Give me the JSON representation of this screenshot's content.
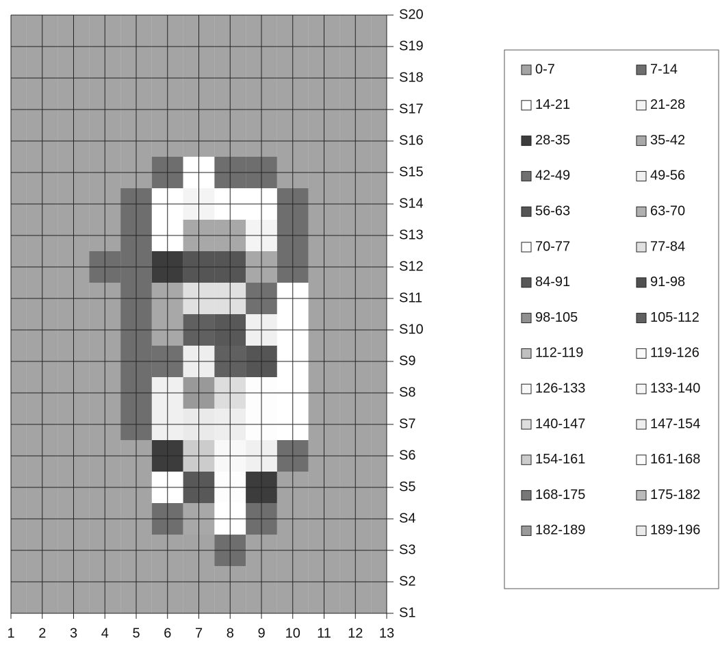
{
  "chart_data": {
    "type": "contour",
    "x": [
      1,
      2,
      3,
      4,
      5,
      6,
      7,
      8,
      9,
      10,
      11,
      12,
      13
    ],
    "xlim": [
      1,
      13
    ],
    "y": [
      "S1",
      "S2",
      "S3",
      "S4",
      "S5",
      "S6",
      "S7",
      "S8",
      "S9",
      "S10",
      "S11",
      "S12",
      "S13",
      "S14",
      "S15",
      "S16",
      "S17",
      "S18",
      "S19",
      "S20"
    ],
    "z": [
      [
        0,
        0,
        0,
        0,
        0,
        0,
        0,
        0,
        0,
        0,
        0,
        0,
        0
      ],
      [
        0,
        0,
        0,
        0,
        0,
        0,
        0,
        0,
        0,
        0,
        0,
        0,
        0
      ],
      [
        0,
        0,
        0,
        0,
        0,
        0,
        5,
        8,
        0,
        0,
        0,
        0,
        0
      ],
      [
        0,
        0,
        0,
        0,
        0,
        8,
        40,
        20,
        10,
        0,
        0,
        0,
        0
      ],
      [
        0,
        0,
        0,
        0,
        0,
        15,
        90,
        70,
        30,
        5,
        0,
        0,
        0
      ],
      [
        0,
        0,
        0,
        0,
        5,
        30,
        160,
        130,
        50,
        10,
        0,
        0,
        0
      ],
      [
        0,
        0,
        0,
        0,
        10,
        50,
        190,
        150,
        70,
        15,
        0,
        0,
        0
      ],
      [
        0,
        0,
        0,
        0,
        10,
        50,
        185,
        140,
        70,
        20,
        0,
        0,
        0
      ],
      [
        0,
        0,
        0,
        0,
        10,
        45,
        150,
        110,
        60,
        20,
        0,
        0,
        0
      ],
      [
        0,
        0,
        0,
        0,
        10,
        40,
        110,
        90,
        50,
        15,
        0,
        0,
        0
      ],
      [
        0,
        0,
        0,
        0,
        10,
        35,
        80,
        80,
        45,
        15,
        0,
        0,
        0
      ],
      [
        0,
        0,
        0,
        8,
        12,
        30,
        60,
        60,
        35,
        12,
        0,
        0,
        0
      ],
      [
        0,
        0,
        0,
        0,
        10,
        20,
        40,
        40,
        25,
        10,
        0,
        0,
        0
      ],
      [
        0,
        0,
        0,
        0,
        8,
        15,
        25,
        20,
        15,
        8,
        0,
        0,
        0
      ],
      [
        0,
        0,
        0,
        0,
        0,
        8,
        15,
        12,
        8,
        0,
        0,
        0,
        0
      ],
      [
        0,
        0,
        0,
        0,
        0,
        5,
        5,
        5,
        0,
        0,
        0,
        0,
        0
      ],
      [
        0,
        0,
        0,
        0,
        0,
        0,
        0,
        0,
        0,
        0,
        0,
        0,
        0
      ],
      [
        0,
        0,
        0,
        0,
        0,
        0,
        0,
        0,
        0,
        0,
        0,
        0,
        0
      ],
      [
        0,
        0,
        0,
        0,
        0,
        0,
        0,
        0,
        0,
        0,
        0,
        0,
        0
      ],
      [
        0,
        0,
        0,
        0,
        0,
        0,
        0,
        0,
        0,
        0,
        0,
        0,
        0
      ]
    ],
    "bins": [
      0,
      7,
      14,
      21,
      28,
      35,
      42,
      49,
      56,
      63,
      70,
      77,
      84,
      91,
      98,
      105,
      112,
      119,
      126,
      133,
      140,
      147,
      154,
      161,
      168,
      175,
      182,
      189,
      196
    ],
    "series": [
      {
        "name": "0-7",
        "color": "#a4a4a4"
      },
      {
        "name": "7-14",
        "color": "#6e6e6e"
      },
      {
        "name": "14-21",
        "color": "#ffffff"
      },
      {
        "name": "21-28",
        "color": "#f4f4f4"
      },
      {
        "name": "28-35",
        "color": "#3c3c3c"
      },
      {
        "name": "35-42",
        "color": "#a8a8a8"
      },
      {
        "name": "42-49",
        "color": "#707070"
      },
      {
        "name": "49-56",
        "color": "#f0f0f0"
      },
      {
        "name": "56-63",
        "color": "#555555"
      },
      {
        "name": "63-70",
        "color": "#b0b0b0"
      },
      {
        "name": "70-77",
        "color": "#fdfdfd"
      },
      {
        "name": "77-84",
        "color": "#e0e0e0"
      },
      {
        "name": "84-91",
        "color": "#585858"
      },
      {
        "name": "91-98",
        "color": "#505050"
      },
      {
        "name": "98-105",
        "color": "#909090"
      },
      {
        "name": "105-112",
        "color": "#606060"
      },
      {
        "name": "112-119",
        "color": "#c0c0c0"
      },
      {
        "name": "119-126",
        "color": "#fafafa"
      },
      {
        "name": "126-133",
        "color": "#f8f8f8"
      },
      {
        "name": "133-140",
        "color": "#f6f6f6"
      },
      {
        "name": "140-147",
        "color": "#dddddd"
      },
      {
        "name": "147-154",
        "color": "#eeeeee"
      },
      {
        "name": "154-161",
        "color": "#cccccc"
      },
      {
        "name": "161-168",
        "color": "#fcfcfc"
      },
      {
        "name": "168-175",
        "color": "#777777"
      },
      {
        "name": "175-182",
        "color": "#bbbbbb"
      },
      {
        "name": "182-189",
        "color": "#999999"
      },
      {
        "name": "189-196",
        "color": "#eaeaea"
      }
    ],
    "grid": true
  }
}
